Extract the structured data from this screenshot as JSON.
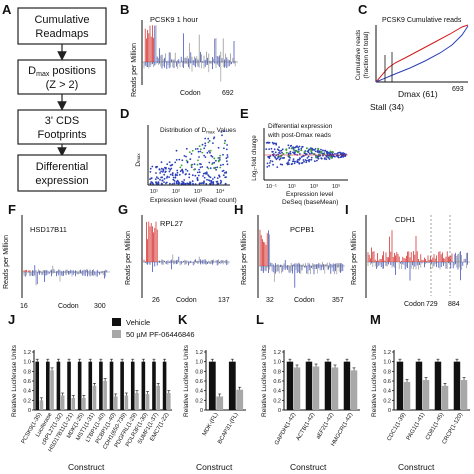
{
  "panel_letters": {
    "a": "A",
    "b": "B",
    "c": "C",
    "d": "D",
    "e": "E",
    "f": "F",
    "g": "G",
    "h": "H",
    "i": "I",
    "j": "J",
    "k": "K",
    "l": "L",
    "m": "M"
  },
  "flowchart": {
    "box1_line1": "Cumulative",
    "box1_line2": "Readmaps",
    "box2_line1_main": "D",
    "box2_line1_sub": "max",
    "box2_line1_rest": " positions",
    "box2_line2": "(Z > 2)",
    "box3_line1": "3' CDS",
    "box3_line2": "Footprints",
    "box4_line1": "Differential",
    "box4_line2": "expression"
  },
  "panel_b": {
    "title": "PCSK9 1 hour",
    "ylabel": "Reads per Million",
    "xlabel": "Codon",
    "xmax": "692"
  },
  "panel_c": {
    "title": "PCSK9 Cumulative reads",
    "ylabel_line1": "Cumulative reads",
    "ylabel_line2": "(fraction of total)",
    "xmax": "693",
    "dmax": "Dmax (61)",
    "stall": "Stall (34)"
  },
  "panel_d": {
    "title_main": "Distribution of D",
    "title_sub": "max",
    "title_rest": " Values",
    "ylabel_main": "D",
    "ylabel_sub": "max",
    "xlabel": "Expression level (Read count)",
    "xticks": [
      "10¹",
      "10²",
      "10³",
      "10⁴"
    ]
  },
  "panel_e": {
    "title_line1": "Differential expression",
    "title_line2": "with post-Dmax reads",
    "ylabel": "Log₂-fold change",
    "xlabel_line1": "Expression level",
    "xlabel_line2": "DeSeq (baseMean)",
    "xticks": [
      "10⁻¹",
      "10¹",
      "10³",
      "10⁵"
    ]
  },
  "panel_f": {
    "title": "HSD17B11",
    "ylabel": "Reads per Million",
    "xlabel": "Codon",
    "xmin": "16",
    "xmax": "300"
  },
  "panel_g": {
    "title": "RPL27",
    "ylabel": "Reads per Million",
    "xlabel": "Codon",
    "xmin": "26",
    "xmax": "137"
  },
  "panel_h": {
    "title": "PCPB1",
    "ylabel": "Reads per Million",
    "xlabel": "Codon",
    "xmin": "32",
    "xmax": "357"
  },
  "panel_i": {
    "title": "CDH1",
    "ylabel": "Reads per Million",
    "xlabel": "Codon",
    "xmarks": [
      "729",
      "884"
    ]
  },
  "bar_ylabel": "Relative Luciferase Units",
  "bar_xlabel": "Construct",
  "legend": {
    "vehicle": "Vehicle",
    "drug": "50 µM PF-06446846"
  },
  "colors": {
    "vehicle": "#111111",
    "drug": "#a8a8a8",
    "red": "#d11a1a",
    "blue": "#2a3fb8",
    "green": "#3aa535"
  },
  "chart_data": [
    {
      "type": "bar",
      "panel": "J",
      "categories": [
        "PCSK9(1-35)",
        "Luciferase",
        "cRPL27(1-32)",
        "HSD17B11(1-21)",
        "MDK(1-25)",
        "MST1(1-31)",
        "LTBP1(1-40)",
        "PCBP1(1-40)",
        "CDH1(650-739)",
        "PDGFRL(1-29)",
        "POLR3F(1-30)",
        "SUMF1(1-37)",
        "EMC7(1-22)"
      ],
      "series": [
        {
          "name": "Vehicle",
          "values": [
            1.0,
            1.0,
            1.0,
            1.0,
            1.0,
            1.0,
            1.0,
            1.0,
            1.0,
            1.0,
            1.0,
            1.0,
            1.0
          ]
        },
        {
          "name": "50 µM PF-06446846",
          "values": [
            0.2,
            0.82,
            0.3,
            0.25,
            0.25,
            0.5,
            0.6,
            0.28,
            0.3,
            0.35,
            0.33,
            0.5,
            0.35
          ]
        }
      ],
      "ylim": [
        0,
        1.2
      ],
      "yticks": [
        "0",
        "0.2",
        "0.4",
        "0.6",
        "0.8",
        "1.0",
        "1.2"
      ],
      "ylabel": "Relative Luciferase Units",
      "xlabel": "Construct"
    },
    {
      "type": "bar",
      "panel": "K",
      "categories": [
        "MDK-(FL)",
        "BCAP31-(FL)"
      ],
      "series": [
        {
          "name": "Vehicle",
          "values": [
            1.0,
            1.0
          ]
        },
        {
          "name": "50 µM PF-06446846",
          "values": [
            0.28,
            0.42
          ]
        }
      ],
      "ylim": [
        0,
        1.2
      ],
      "yticks": [
        "0",
        "0.2",
        "0.4",
        "0.6",
        "0.8",
        "1.0",
        "1.2"
      ],
      "ylabel": "Relative Luciferase Units",
      "xlabel": "Construct"
    },
    {
      "type": "bar",
      "panel": "L",
      "categories": [
        "GAPDH(1-42)",
        "ACTB(1-42)",
        "aEF2(1-42)",
        "HMGCR(1-42)"
      ],
      "series": [
        {
          "name": "Vehicle",
          "values": [
            1.0,
            1.0,
            1.0,
            1.0
          ]
        },
        {
          "name": "50 µM PF-06446846",
          "values": [
            0.88,
            0.9,
            0.88,
            0.82
          ]
        }
      ],
      "ylim": [
        0,
        1.2
      ],
      "yticks": [
        "0",
        "0.2",
        "0.4",
        "0.6",
        "0.8",
        "1.0",
        "1.2"
      ],
      "ylabel": "Relative Luciferase Units",
      "xlabel": "Construct"
    },
    {
      "type": "bar",
      "panel": "M",
      "categories": [
        "CDC1(1-39)",
        "PAG1(1-41)",
        "CD81(1-45)",
        "CRCP(1-120)"
      ],
      "series": [
        {
          "name": "Vehicle",
          "values": [
            1.0,
            1.0,
            1.0,
            1.0
          ]
        },
        {
          "name": "50 µM PF-06446846",
          "values": [
            0.58,
            0.62,
            0.5,
            0.62
          ]
        }
      ],
      "ylim": [
        0,
        1.2
      ],
      "yticks": [
        "0",
        "0.2",
        "0.4",
        "0.6",
        "0.8",
        "1.0",
        "1.2"
      ],
      "ylabel": "Relative Luciferase Units",
      "xlabel": "Construct"
    }
  ]
}
